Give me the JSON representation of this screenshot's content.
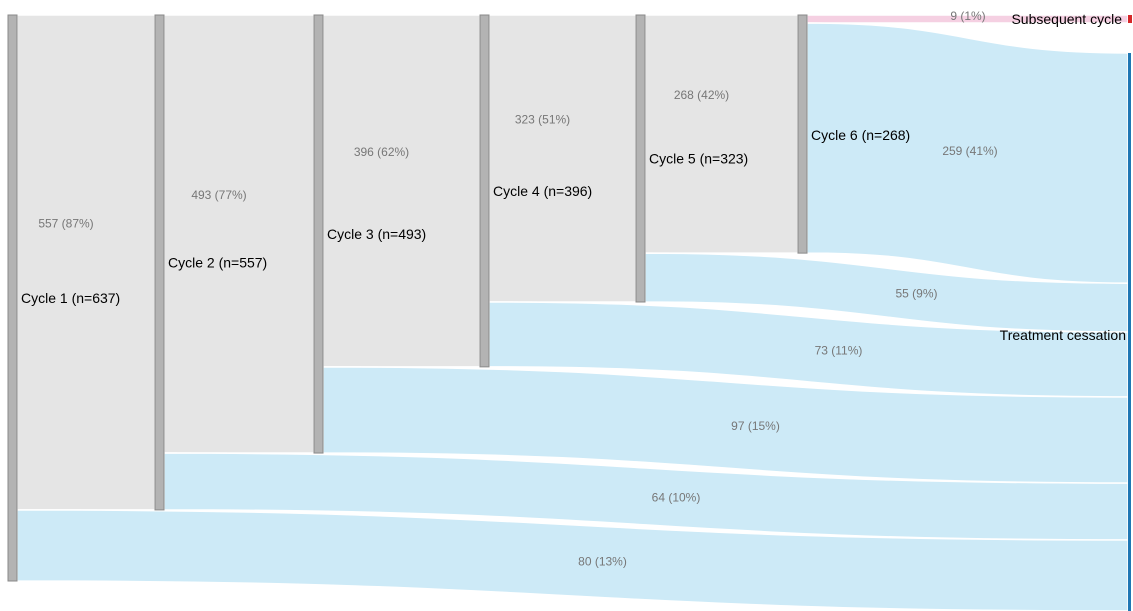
{
  "chart_data": {
    "type": "sankey",
    "nodes": [
      {
        "id": "c1",
        "label": "Cycle 1 (n=637)",
        "value": 637
      },
      {
        "id": "c2",
        "label": "Cycle 2 (n=557)",
        "value": 557
      },
      {
        "id": "c3",
        "label": "Cycle 3 (n=493)",
        "value": 493
      },
      {
        "id": "c4",
        "label": "Cycle 4 (n=396)",
        "value": 396
      },
      {
        "id": "c5",
        "label": "Cycle 5 (n=323)",
        "value": 323
      },
      {
        "id": "c6",
        "label": "Cycle 6 (n=268)",
        "value": 268
      },
      {
        "id": "sub",
        "label": "Subsequent cycle",
        "value": 9
      },
      {
        "id": "tc",
        "label": "Treatment cessation",
        "value": 628
      }
    ],
    "links": [
      {
        "source": "c1",
        "target": "c2",
        "value": 557,
        "label": "557 (87%)",
        "kind": "continue"
      },
      {
        "source": "c1",
        "target": "tc",
        "value": 80,
        "label": "80 (13%)",
        "kind": "cessation"
      },
      {
        "source": "c2",
        "target": "c3",
        "value": 493,
        "label": "493 (77%)",
        "kind": "continue"
      },
      {
        "source": "c2",
        "target": "tc",
        "value": 64,
        "label": "64 (10%)",
        "kind": "cessation"
      },
      {
        "source": "c3",
        "target": "c4",
        "value": 396,
        "label": "396 (62%)",
        "kind": "continue"
      },
      {
        "source": "c3",
        "target": "tc",
        "value": 97,
        "label": "97 (15%)",
        "kind": "cessation"
      },
      {
        "source": "c4",
        "target": "c5",
        "value": 323,
        "label": "323 (51%)",
        "kind": "continue"
      },
      {
        "source": "c4",
        "target": "tc",
        "value": 73,
        "label": "73 (11%)",
        "kind": "cessation"
      },
      {
        "source": "c5",
        "target": "c6",
        "value": 268,
        "label": "268 (42%)",
        "kind": "continue"
      },
      {
        "source": "c5",
        "target": "tc",
        "value": 55,
        "label": "55 (9%)",
        "kind": "cessation"
      },
      {
        "source": "c6",
        "target": "sub",
        "value": 9,
        "label": "9 (1%)",
        "kind": "subsequent"
      },
      {
        "source": "c6",
        "target": "tc",
        "value": 259,
        "label": "259 (41%)",
        "kind": "cessation"
      }
    ],
    "colors": {
      "continue": "#e5e5e5",
      "cessation": "#cdeaf7",
      "subsequent": "#f5d0e2",
      "node": "#b3b3b3",
      "cessation_node": "#1f77b4",
      "subsequent_node": "#d62728"
    }
  }
}
